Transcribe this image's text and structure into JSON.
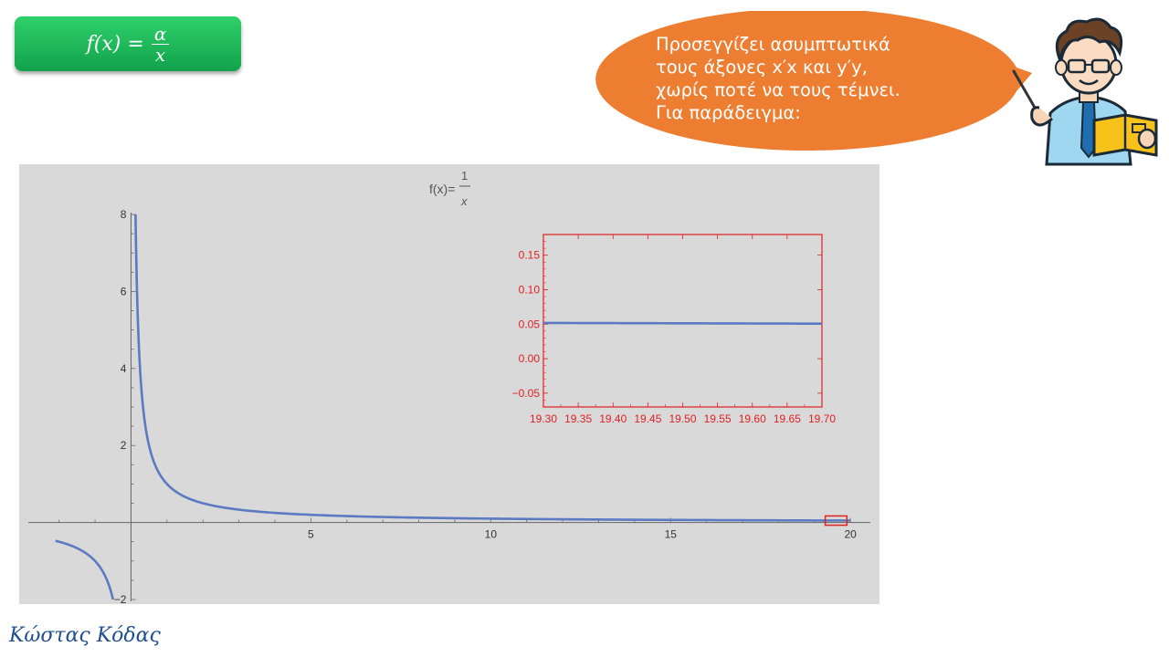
{
  "formula_box": {
    "lhs": "f(x) =",
    "numerator": "α",
    "denominator": "x"
  },
  "speech": {
    "lines": [
      "Προσεγγίζει ασυμπτωτικά",
      "τους άξονες x′x και y′y,",
      "χωρίς ποτέ να τους τέμνει.",
      "Για παράδειγμα:"
    ]
  },
  "author": "Κώστας Κόδας",
  "colors": {
    "bubble": "#ed7d31",
    "curve": "#5b7ac1",
    "inset": "#e02020",
    "plot_bg": "#d9d9d9",
    "box": "#1fb55a"
  },
  "chart_data": [
    {
      "type": "line",
      "function": "1/x",
      "title_lhs": "f(x)=",
      "title_num": "1",
      "title_den": "x",
      "xlim": [
        -2.5,
        20.3
      ],
      "ylim": [
        -2,
        8
      ],
      "x_ticks": [
        5,
        10,
        15,
        20
      ],
      "x_tick_labels": [
        "5",
        "10",
        "15",
        "20"
      ],
      "y_ticks": [
        -2,
        2,
        4,
        6,
        8
      ],
      "y_tick_labels": [
        "−2",
        "2",
        "4",
        "6",
        "8"
      ],
      "series": [
        {
          "x": [
            -2.1,
            -1.8,
            -1.5,
            -1.3,
            -1.1,
            -0.95,
            -0.8,
            -0.7,
            -0.6,
            -0.5
          ],
          "y": [
            -0.476,
            -0.556,
            -0.667,
            -0.769,
            -0.909,
            -1.053,
            -1.25,
            -1.429,
            -1.667,
            -2.0
          ]
        },
        {
          "x": [
            0.125,
            0.15,
            0.18,
            0.22,
            0.27,
            0.33,
            0.4,
            0.5,
            0.65,
            0.8,
            1,
            1.3,
            1.7,
            2.2,
            3,
            4,
            5.5,
            7.5,
            10,
            13,
            16.5,
            20
          ],
          "y": [
            8,
            6.667,
            5.556,
            4.545,
            3.704,
            3.03,
            2.5,
            2.0,
            1.538,
            1.25,
            1.0,
            0.769,
            0.588,
            0.455,
            0.333,
            0.25,
            0.182,
            0.133,
            0.1,
            0.077,
            0.061,
            0.05
          ]
        }
      ],
      "highlight_box": {
        "xlim": [
          19.3,
          19.7
        ],
        "ylim": [
          -0.07,
          0.17
        ]
      }
    },
    {
      "type": "line",
      "function": "1/x",
      "xlim": [
        19.3,
        19.7
      ],
      "ylim": [
        -0.07,
        0.18
      ],
      "x_ticks": [
        19.3,
        19.35,
        19.4,
        19.45,
        19.5,
        19.55,
        19.6,
        19.65,
        19.7
      ],
      "x_tick_labels": [
        "19.30",
        "19.35",
        "19.40",
        "19.45",
        "19.50",
        "19.55",
        "19.60",
        "19.65",
        "19.70"
      ],
      "y_ticks": [
        -0.05,
        0,
        0.05,
        0.1,
        0.15
      ],
      "y_tick_labels": [
        "−0.05",
        "0.00",
        "0.05",
        "0.10",
        "0.15"
      ],
      "series": [
        {
          "x": [
            19.3,
            19.7
          ],
          "y": [
            0.0518,
            0.0508
          ]
        }
      ]
    }
  ]
}
